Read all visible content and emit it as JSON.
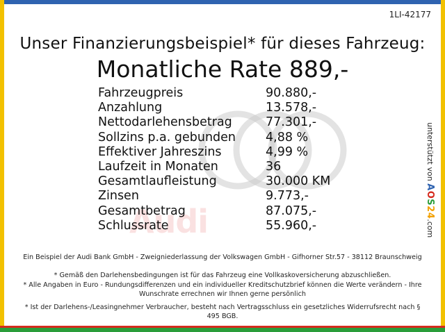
{
  "ref_code": "1LI-42177",
  "headline": "Unser Finanzierungsbeispiel* für dieses Fahrzeug:",
  "rate_line": "Monatliche Rate 889,-",
  "rows": [
    {
      "label": "Fahrzeugpreis",
      "value": "90.880,-"
    },
    {
      "label": "Anzahlung",
      "value": "13.578,-"
    },
    {
      "label": "Nettodarlehensbetrag",
      "value": "77.301,-"
    },
    {
      "label": "Sollzins p.a. gebunden",
      "value": "4,88 %"
    },
    {
      "label": "Effektiver Jahreszins",
      "value": "4,99 %"
    },
    {
      "label": "Laufzeit in Monaten",
      "value": "36"
    },
    {
      "label": "Gesamtlaufleistung",
      "value": "30.000 KM"
    },
    {
      "label": "Zinsen",
      "value": "9.773,-"
    },
    {
      "label": "Gesamtbetrag",
      "value": "87.075,-"
    },
    {
      "label": "Schlussrate",
      "value": "55.960,-"
    }
  ],
  "watermark_text": "Audi",
  "side": {
    "prefix": "unterstützt von ",
    "brand_a": "A",
    "brand_o": "O",
    "brand_s": "S",
    "brand_n": "24",
    "brand_tld": ".com"
  },
  "footer": {
    "line1": "Ein Beispiel der Audi Bank GmbH - Zweigniederlassung der Volkswagen GmbH - Gifhorner Str.57 - 38112 Braunschweig",
    "line2": "* Gemäß den Darlehensbedingungen ist für das Fahrzeug eine Vollkaskoversicherung abzuschließen.",
    "line3": "* Alle Angaben in Euro - Rundungsdifferenzen und ein individueller Kreditschutzbrief können die Werte verändern - Ihre Wunschrate errechnen wir Ihnen gerne persönlich",
    "line4": "* Ist der Darlehens-/Leasingnehmer Verbraucher, besteht nach Vertragsschluss ein gesetzliches Widerrufsrecht nach § 495 BGB."
  },
  "colors": {
    "frame_top": "#2f63b0",
    "frame_side": "#f2c100",
    "frame_bottom": "#2a9d3a",
    "frame_bottom_accent": "#d52b1e"
  }
}
